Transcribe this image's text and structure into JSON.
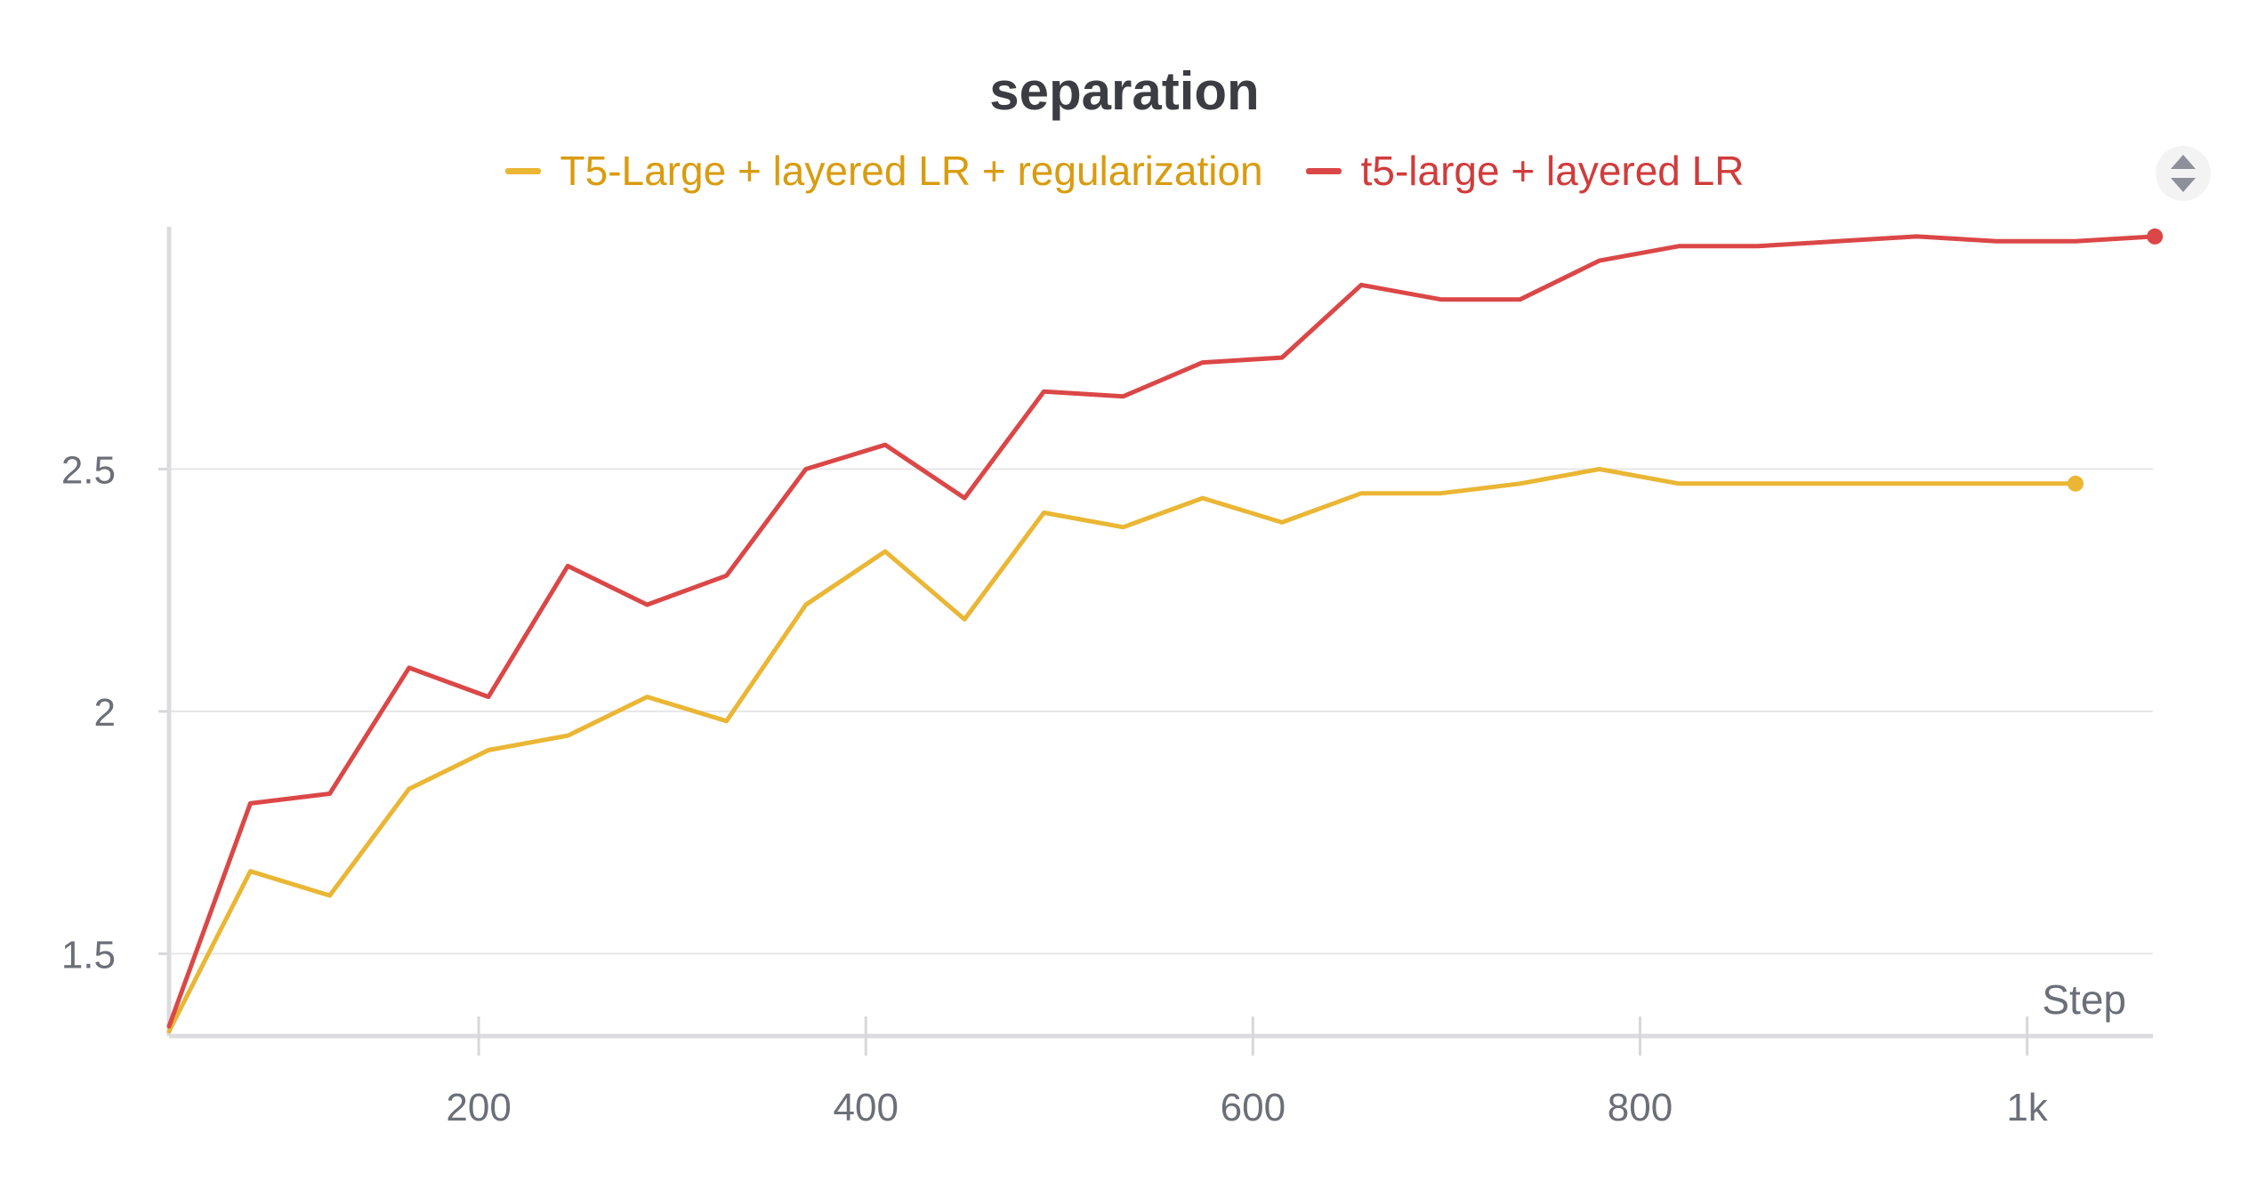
{
  "chart_data": {
    "type": "line",
    "title": "separation",
    "xlabel": "Step",
    "ylabel": "",
    "xlim": [
      40,
      1065
    ],
    "ylim": [
      1.33,
      3.0
    ],
    "x_ticks": [
      200,
      400,
      600,
      800,
      1000
    ],
    "x_tick_labels": [
      "200",
      "400",
      "600",
      "800",
      "1k"
    ],
    "y_ticks": [
      1.5,
      2,
      2.5
    ],
    "y_tick_labels": [
      "1.5",
      "2",
      "2.5"
    ],
    "grid": "horizontal",
    "legend_position": "top",
    "series": [
      {
        "name": "T5-Large + layered LR + regularization",
        "color": "#eab634",
        "x": [
          40,
          82,
          123,
          164,
          205,
          246,
          287,
          328,
          369,
          410,
          451,
          492,
          533,
          574,
          615,
          656,
          697,
          738,
          779,
          820,
          861,
          902,
          943,
          984,
          1025
        ],
        "y": [
          1.34,
          1.67,
          1.62,
          1.84,
          1.92,
          1.95,
          2.03,
          1.98,
          2.22,
          2.33,
          2.19,
          2.41,
          2.38,
          2.44,
          2.39,
          2.45,
          2.45,
          2.47,
          2.5,
          2.47,
          2.47,
          2.47,
          2.47,
          2.47,
          2.47
        ]
      },
      {
        "name": "t5-large + layered LR",
        "color": "#db4747",
        "x": [
          40,
          82,
          123,
          164,
          205,
          246,
          287,
          328,
          369,
          410,
          451,
          492,
          533,
          574,
          615,
          656,
          697,
          738,
          779,
          820,
          861,
          902,
          943,
          984,
          1025,
          1066
        ],
        "y": [
          1.35,
          1.81,
          1.83,
          2.09,
          2.03,
          2.3,
          2.22,
          2.28,
          2.5,
          2.55,
          2.44,
          2.66,
          2.65,
          2.72,
          2.73,
          2.88,
          2.85,
          2.85,
          2.93,
          2.96,
          2.96,
          2.97,
          2.98,
          2.97,
          2.97,
          2.98
        ]
      }
    ]
  }
}
